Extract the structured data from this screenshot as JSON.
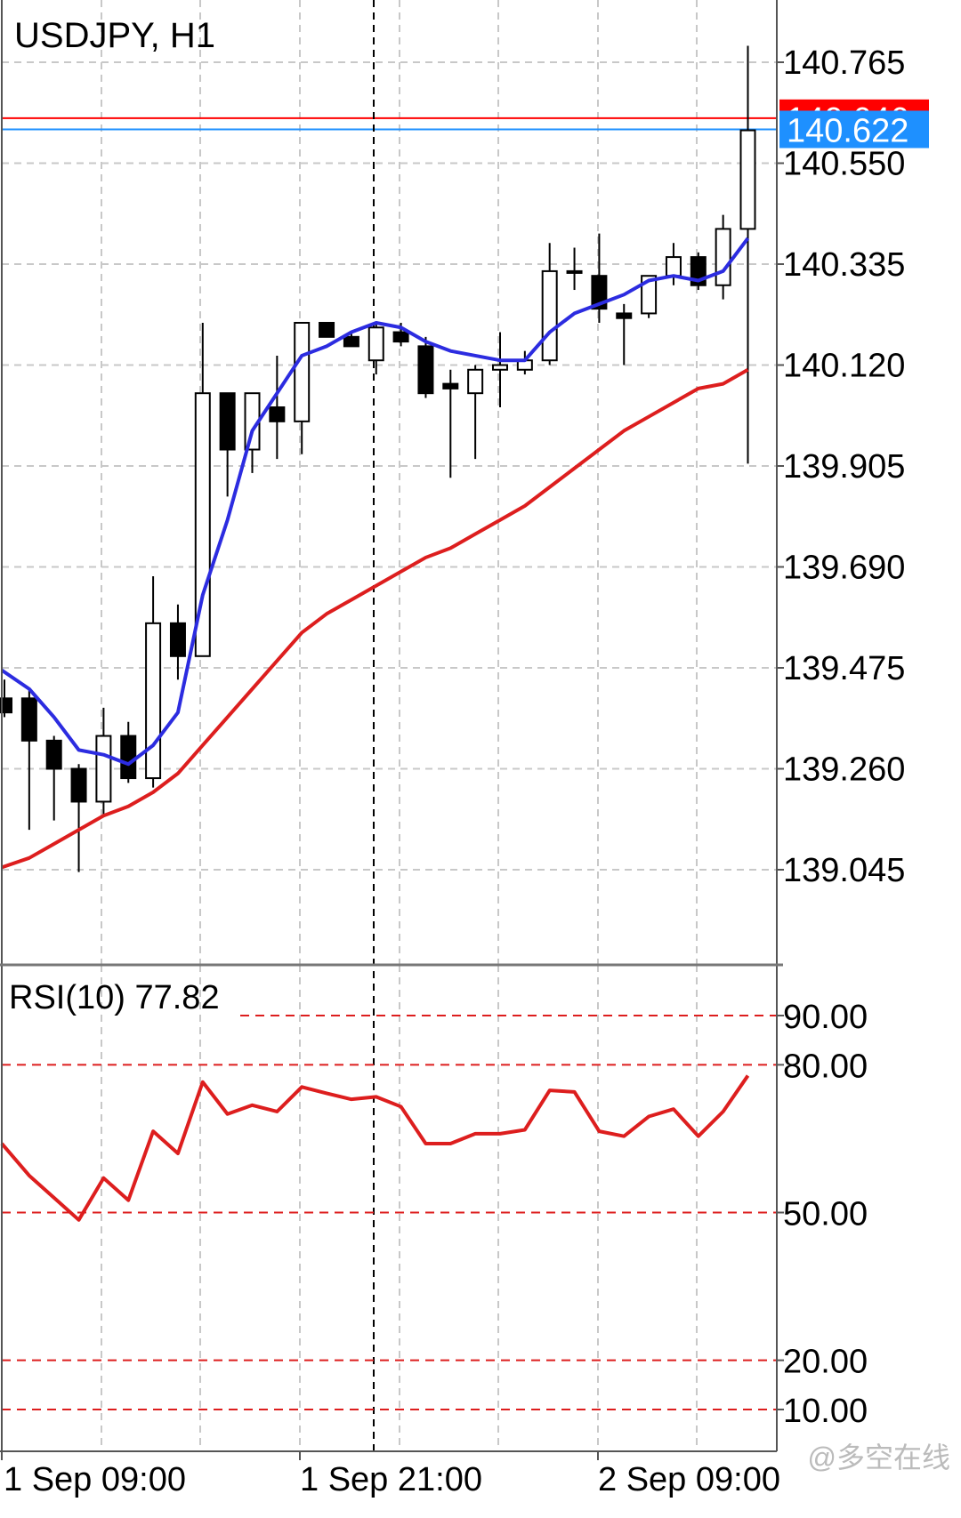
{
  "chart_data": {
    "type": "candlestick",
    "title": "USDJPY, H1",
    "x_tick_labels": [
      "1 Sep 09:00",
      "1 Sep 21:00",
      "2 Sep 09:00"
    ],
    "price_axis": {
      "tick_labels": [
        "140.765",
        "140.550",
        "140.335",
        "140.120",
        "139.905",
        "139.690",
        "139.475",
        "139.260",
        "139.045"
      ],
      "range": [
        138.84,
        140.88
      ],
      "grid": true
    },
    "price_markers": [
      {
        "label": "140.646",
        "value": 140.646,
        "color": "#ff0000"
      },
      {
        "label": "140.622",
        "value": 140.622,
        "color": "#1e90ff"
      }
    ],
    "candles": [
      {
        "o": 139.41,
        "h": 139.45,
        "l": 139.37,
        "c": 139.38
      },
      {
        "o": 139.41,
        "h": 139.43,
        "l": 139.13,
        "c": 139.32
      },
      {
        "o": 139.32,
        "h": 139.33,
        "l": 139.15,
        "c": 139.26
      },
      {
        "o": 139.26,
        "h": 139.27,
        "l": 139.04,
        "c": 139.19
      },
      {
        "o": 139.19,
        "h": 139.39,
        "l": 139.16,
        "c": 139.33
      },
      {
        "o": 139.33,
        "h": 139.36,
        "l": 139.23,
        "c": 139.24
      },
      {
        "o": 139.24,
        "h": 139.67,
        "l": 139.22,
        "c": 139.57
      },
      {
        "o": 139.57,
        "h": 139.61,
        "l": 139.45,
        "c": 139.5
      },
      {
        "o": 139.5,
        "h": 140.21,
        "l": 139.5,
        "c": 140.06
      },
      {
        "o": 140.06,
        "h": 140.06,
        "l": 139.84,
        "c": 139.94
      },
      {
        "o": 139.94,
        "h": 140.06,
        "l": 139.89,
        "c": 140.06
      },
      {
        "o": 140.03,
        "h": 140.14,
        "l": 139.92,
        "c": 140.0
      },
      {
        "o": 140.0,
        "h": 140.21,
        "l": 139.93,
        "c": 140.21
      },
      {
        "o": 140.21,
        "h": 140.21,
        "l": 140.18,
        "c": 140.18
      },
      {
        "o": 140.18,
        "h": 140.19,
        "l": 140.16,
        "c": 140.16
      },
      {
        "o": 140.13,
        "h": 140.21,
        "l": 140.1,
        "c": 140.2
      },
      {
        "o": 140.19,
        "h": 140.21,
        "l": 140.16,
        "c": 140.17
      },
      {
        "o": 140.16,
        "h": 140.18,
        "l": 140.05,
        "c": 140.06
      },
      {
        "o": 140.08,
        "h": 140.11,
        "l": 139.88,
        "c": 140.07
      },
      {
        "o": 140.06,
        "h": 140.12,
        "l": 139.92,
        "c": 140.11
      },
      {
        "o": 140.11,
        "h": 140.19,
        "l": 140.03,
        "c": 140.12
      },
      {
        "o": 140.11,
        "h": 140.15,
        "l": 140.1,
        "c": 140.13
      },
      {
        "o": 140.13,
        "h": 140.38,
        "l": 140.12,
        "c": 140.32
      },
      {
        "o": 140.32,
        "h": 140.37,
        "l": 140.28,
        "c": 140.32
      },
      {
        "o": 140.31,
        "h": 140.4,
        "l": 140.21,
        "c": 140.24
      },
      {
        "o": 140.23,
        "h": 140.25,
        "l": 140.12,
        "c": 140.22
      },
      {
        "o": 140.23,
        "h": 140.3,
        "l": 140.22,
        "c": 140.31
      },
      {
        "o": 140.31,
        "h": 140.38,
        "l": 140.29,
        "c": 140.35
      },
      {
        "o": 140.35,
        "h": 140.36,
        "l": 140.28,
        "c": 140.29
      },
      {
        "o": 140.29,
        "h": 140.44,
        "l": 140.26,
        "c": 140.41
      },
      {
        "o": 140.41,
        "h": 140.8,
        "l": 139.91,
        "c": 140.62
      }
    ],
    "ma_blue": [
      139.47,
      139.43,
      139.37,
      139.3,
      139.29,
      139.27,
      139.31,
      139.38,
      139.63,
      139.79,
      139.98,
      140.06,
      140.14,
      140.16,
      140.19,
      140.21,
      140.2,
      140.17,
      140.15,
      140.14,
      140.13,
      140.13,
      140.19,
      140.23,
      140.25,
      140.27,
      140.3,
      140.31,
      140.3,
      140.32,
      140.39
    ],
    "ma_red": [
      139.05,
      139.07,
      139.1,
      139.13,
      139.16,
      139.18,
      139.21,
      139.25,
      139.31,
      139.37,
      139.43,
      139.49,
      139.55,
      139.59,
      139.62,
      139.65,
      139.68,
      139.71,
      139.73,
      139.76,
      139.79,
      139.82,
      139.86,
      139.9,
      139.94,
      139.98,
      140.01,
      140.04,
      140.07,
      140.08,
      140.11
    ],
    "rsi": {
      "label": "RSI(10) 77.82",
      "levels": [
        90,
        80,
        50,
        20,
        10
      ],
      "level_labels": [
        "90.00",
        "80.00",
        "50.00",
        "20.00",
        "10.00"
      ],
      "range": [
        5,
        99
      ],
      "values": [
        64.0,
        57.5,
        53.0,
        48.5,
        57.0,
        52.5,
        66.5,
        62.0,
        76.5,
        70.0,
        71.8,
        70.5,
        75.5,
        74.2,
        73.0,
        73.5,
        71.5,
        64.0,
        64.0,
        66.0,
        66.0,
        66.8,
        74.8,
        74.5,
        66.5,
        65.5,
        69.5,
        71.0,
        65.5,
        70.5,
        77.8
      ]
    },
    "colors": {
      "ma_blue": "#2c2ce0",
      "ma_red": "#dd1e1e",
      "rsi_line": "#dd1e1e",
      "level_line": "#dd1e1e",
      "grid": "#c8c8c8"
    }
  },
  "watermark": "@多空在线"
}
